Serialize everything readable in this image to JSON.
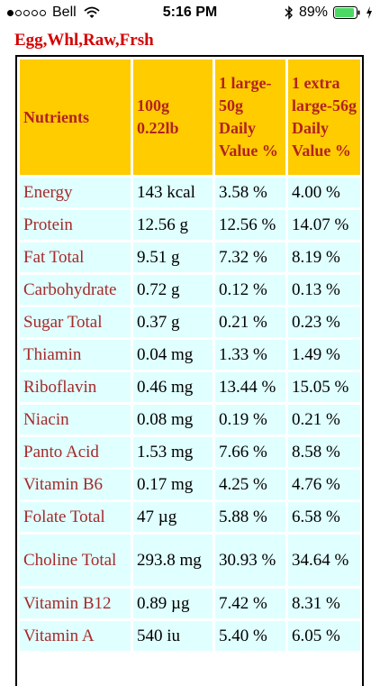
{
  "status_bar": {
    "carrier": "Bell",
    "time": "5:16 PM",
    "battery": "89%"
  },
  "title": "Egg,Whl,Raw,Frsh",
  "colors": {
    "title": "#d40000",
    "header_bg": "#ffcc00",
    "header_text": "#b22222",
    "cell_bg": "#e0ffff",
    "name_text": "#a52a2a"
  },
  "table": {
    "headers": [
      "Nutrients",
      "100g 0.22lb",
      "1 large-50g Daily Value %",
      "1 extra large-56g Daily Value %"
    ],
    "rows": [
      [
        "Energy",
        "143 kcal",
        "3.58 %",
        "4.00 %"
      ],
      [
        "Protein",
        "12.56 g",
        "12.56 %",
        "14.07 %"
      ],
      [
        "Fat Total",
        "9.51 g",
        "7.32 %",
        "8.19 %"
      ],
      [
        "Carbohydrate",
        "0.72 g",
        "0.12 %",
        "0.13 %"
      ],
      [
        "Sugar Total",
        "0.37 g",
        "0.21 %",
        "0.23 %"
      ],
      [
        "Thiamin",
        "0.04 mg",
        "1.33 %",
        "1.49 %"
      ],
      [
        "Riboflavin",
        "0.46 mg",
        "13.44 %",
        "15.05 %"
      ],
      [
        "Niacin",
        "0.08 mg",
        "0.19 %",
        "0.21 %"
      ],
      [
        "Panto Acid",
        "1.53 mg",
        "7.66 %",
        "8.58 %"
      ],
      [
        "Vitamin B6",
        "0.17 mg",
        "4.25 %",
        "4.76 %"
      ],
      [
        "Folate Total",
        "47 µg",
        "5.88 %",
        "6.58 %"
      ],
      [
        "Choline Total",
        "293.8 mg",
        "30.93 %",
        "34.64 %"
      ],
      [
        "Vitamin B12",
        "0.89 µg",
        "7.42 %",
        "8.31 %"
      ],
      [
        "Vitamin A",
        "540 iu",
        "5.40 %",
        "6.05 %"
      ]
    ]
  }
}
